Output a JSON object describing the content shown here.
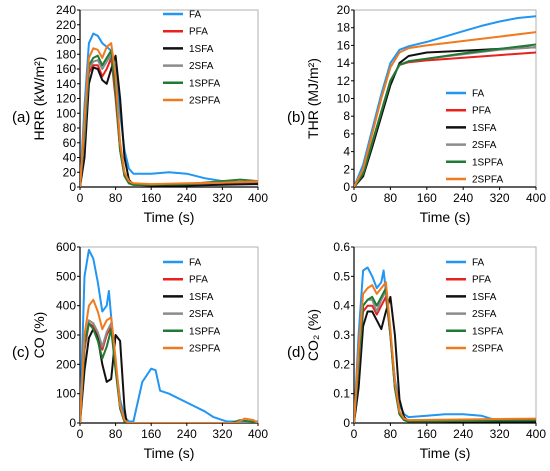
{
  "series_colors": {
    "FA": "#2196F3",
    "PFA": "#E8211D",
    "1SFA": "#111111",
    "2SFA": "#8C8C8C",
    "1SPFA": "#1E7A34",
    "2SPFA": "#F07A1E"
  },
  "chart_data": [
    {
      "panel": "(a)",
      "type": "line",
      "title": "",
      "xlabel": "Time (s)",
      "ylabel": "HRR (kW/m²)",
      "xlim": [
        0,
        400
      ],
      "ylim": [
        0,
        240
      ],
      "xticks": [
        "0",
        "80",
        "160",
        "240",
        "320",
        "400"
      ],
      "yticks": [
        "0",
        "20",
        "40",
        "60",
        "80",
        "100",
        "120",
        "140",
        "160",
        "180",
        "200",
        "220",
        "240"
      ],
      "legend": [
        "FA",
        "PFA",
        "1SFA",
        "2SFA",
        "1SPFA",
        "2SPFA"
      ],
      "legend_position": "top-right",
      "series": [
        {
          "name": "FA",
          "x": [
            0,
            10,
            20,
            30,
            40,
            50,
            60,
            70,
            80,
            90,
            100,
            110,
            120,
            160,
            200,
            240,
            280,
            320,
            360,
            400
          ],
          "y": [
            0,
            110,
            195,
            208,
            205,
            195,
            190,
            185,
            160,
            100,
            50,
            25,
            18,
            18,
            20,
            18,
            12,
            8,
            6,
            6
          ]
        },
        {
          "name": "PFA",
          "x": [
            0,
            10,
            20,
            30,
            40,
            50,
            60,
            70,
            80,
            90,
            100,
            110,
            120,
            160,
            240,
            320,
            400
          ],
          "y": [
            0,
            80,
            155,
            165,
            165,
            150,
            160,
            175,
            120,
            50,
            15,
            5,
            3,
            3,
            3,
            5,
            6
          ]
        },
        {
          "name": "1SFA",
          "x": [
            0,
            10,
            20,
            30,
            40,
            50,
            60,
            70,
            80,
            90,
            100,
            110,
            120,
            160,
            240,
            320,
            400
          ],
          "y": [
            0,
            40,
            140,
            162,
            160,
            145,
            140,
            160,
            178,
            120,
            40,
            10,
            3,
            2,
            2,
            3,
            4
          ]
        },
        {
          "name": "2SFA",
          "x": [
            0,
            10,
            20,
            30,
            40,
            50,
            60,
            70,
            80,
            90,
            100,
            110,
            120,
            160,
            240,
            320,
            400
          ],
          "y": [
            0,
            70,
            160,
            170,
            172,
            160,
            170,
            180,
            130,
            50,
            15,
            5,
            3,
            3,
            4,
            6,
            7
          ]
        },
        {
          "name": "1SPFA",
          "x": [
            0,
            10,
            20,
            30,
            40,
            50,
            60,
            70,
            80,
            90,
            100,
            110,
            120,
            160,
            240,
            320,
            360,
            400
          ],
          "y": [
            0,
            80,
            165,
            175,
            178,
            165,
            175,
            185,
            130,
            50,
            15,
            5,
            3,
            3,
            4,
            8,
            10,
            8
          ]
        },
        {
          "name": "2SPFA",
          "x": [
            0,
            10,
            20,
            30,
            40,
            50,
            60,
            70,
            80,
            90,
            100,
            110,
            120,
            160,
            240,
            320,
            400
          ],
          "y": [
            0,
            90,
            175,
            188,
            186,
            175,
            190,
            195,
            150,
            60,
            20,
            8,
            5,
            4,
            5,
            6,
            8
          ]
        }
      ]
    },
    {
      "panel": "(b)",
      "type": "line",
      "title": "",
      "xlabel": "Time (s)",
      "ylabel": "THR (MJ/m²)",
      "xlim": [
        0,
        400
      ],
      "ylim": [
        0,
        20
      ],
      "xticks": [
        "0",
        "80",
        "160",
        "240",
        "320",
        "400"
      ],
      "yticks": [
        "0",
        "2",
        "4",
        "6",
        "8",
        "10",
        "12",
        "14",
        "16",
        "18",
        "20"
      ],
      "legend": [
        "FA",
        "PFA",
        "1SFA",
        "2SFA",
        "1SPFA",
        "2SPFA"
      ],
      "legend_position": "right",
      "series": [
        {
          "name": "FA",
          "x": [
            0,
            20,
            40,
            60,
            80,
            100,
            120,
            160,
            200,
            240,
            280,
            320,
            360,
            400
          ],
          "y": [
            0,
            2.5,
            6.5,
            10.5,
            14,
            15.5,
            15.9,
            16.4,
            17,
            17.6,
            18.2,
            18.7,
            19.1,
            19.3
          ]
        },
        {
          "name": "PFA",
          "x": [
            0,
            20,
            40,
            60,
            80,
            100,
            120,
            160,
            240,
            320,
            400
          ],
          "y": [
            0,
            1.5,
            5,
            8.5,
            12,
            13.8,
            14.1,
            14.3,
            14.6,
            14.9,
            15.2
          ]
        },
        {
          "name": "1SFA",
          "x": [
            0,
            20,
            40,
            60,
            80,
            100,
            120,
            160,
            240,
            320,
            400
          ],
          "y": [
            0,
            1.2,
            4.5,
            8,
            11.5,
            14,
            14.8,
            15.2,
            15.4,
            15.6,
            15.8
          ]
        },
        {
          "name": "2SFA",
          "x": [
            0,
            20,
            40,
            60,
            80,
            100,
            120,
            160,
            240,
            320,
            400
          ],
          "y": [
            0,
            1.5,
            5,
            8.5,
            12,
            13.8,
            14.2,
            14.5,
            15,
            15.5,
            15.8
          ]
        },
        {
          "name": "1SPFA",
          "x": [
            0,
            20,
            40,
            60,
            80,
            100,
            120,
            160,
            240,
            320,
            400
          ],
          "y": [
            0,
            1.5,
            5,
            8.5,
            12,
            13.8,
            14.2,
            14.5,
            15.1,
            15.6,
            16.1
          ]
        },
        {
          "name": "2SPFA",
          "x": [
            0,
            20,
            40,
            60,
            80,
            100,
            120,
            160,
            240,
            320,
            400
          ],
          "y": [
            0,
            2,
            6,
            10,
            13.5,
            15.2,
            15.7,
            16,
            16.5,
            17,
            17.5
          ]
        }
      ]
    },
    {
      "panel": "(c)",
      "type": "line",
      "title": "",
      "xlabel": "Time (s)",
      "ylabel": "CO (%)",
      "xlim": [
        0,
        400
      ],
      "ylim": [
        0,
        600
      ],
      "xticks": [
        "0",
        "80",
        "160",
        "240",
        "320",
        "400"
      ],
      "yticks": [
        "0",
        "100",
        "200",
        "300",
        "400",
        "500",
        "600"
      ],
      "legend": [
        "FA",
        "PFA",
        "1SFA",
        "2SFA",
        "1SPFA",
        "2SPFA"
      ],
      "legend_position": "right",
      "series": [
        {
          "name": "FA",
          "x": [
            0,
            10,
            20,
            30,
            40,
            50,
            60,
            65,
            70,
            80,
            90,
            100,
            110,
            120,
            140,
            160,
            170,
            180,
            200,
            240,
            280,
            300,
            320,
            330,
            400
          ],
          "y": [
            0,
            500,
            590,
            560,
            480,
            380,
            400,
            450,
            360,
            200,
            80,
            20,
            5,
            5,
            140,
            185,
            180,
            110,
            100,
            70,
            40,
            20,
            10,
            5,
            5
          ]
        },
        {
          "name": "PFA",
          "x": [
            0,
            10,
            20,
            30,
            40,
            50,
            60,
            70,
            80,
            90,
            100,
            110,
            400
          ],
          "y": [
            0,
            250,
            340,
            330,
            300,
            250,
            300,
            330,
            200,
            50,
            5,
            0,
            0
          ]
        },
        {
          "name": "1SFA",
          "x": [
            0,
            10,
            20,
            30,
            40,
            50,
            60,
            70,
            80,
            90,
            100,
            105,
            400
          ],
          "y": [
            0,
            180,
            290,
            320,
            290,
            200,
            140,
            150,
            300,
            280,
            50,
            0,
            0
          ]
        },
        {
          "name": "2SFA",
          "x": [
            0,
            10,
            20,
            30,
            40,
            50,
            60,
            70,
            80,
            90,
            100,
            110,
            400
          ],
          "y": [
            0,
            260,
            350,
            340,
            310,
            260,
            310,
            340,
            200,
            50,
            5,
            0,
            0
          ]
        },
        {
          "name": "1SPFA",
          "x": [
            0,
            10,
            20,
            30,
            40,
            50,
            60,
            70,
            80,
            90,
            100,
            110,
            340,
            360,
            380,
            400
          ],
          "y": [
            0,
            270,
            340,
            320,
            280,
            220,
            260,
            320,
            180,
            50,
            5,
            0,
            0,
            10,
            5,
            0
          ]
        },
        {
          "name": "2SPFA",
          "x": [
            0,
            10,
            20,
            30,
            40,
            50,
            60,
            70,
            80,
            90,
            100,
            110,
            350,
            370,
            390,
            400
          ],
          "y": [
            0,
            300,
            400,
            420,
            380,
            320,
            350,
            360,
            220,
            60,
            10,
            0,
            0,
            15,
            10,
            0
          ]
        }
      ]
    },
    {
      "panel": "(d)",
      "type": "line",
      "title": "",
      "xlabel": "Time (s)",
      "ylabel": "CO₂ (%)",
      "xlim": [
        0,
        400
      ],
      "ylim": [
        0,
        0.6
      ],
      "xticks": [
        "0",
        "80",
        "160",
        "240",
        "320",
        "400"
      ],
      "yticks": [
        "0",
        "0.1",
        "0.2",
        "0.3",
        "0.4",
        "0.5",
        "0.6"
      ],
      "legend": [
        "FA",
        "PFA",
        "1SFA",
        "2SFA",
        "1SPFA",
        "2SPFA"
      ],
      "legend_position": "right",
      "series": [
        {
          "name": "FA",
          "x": [
            0,
            10,
            20,
            30,
            40,
            50,
            60,
            65,
            70,
            80,
            90,
            100,
            110,
            120,
            160,
            200,
            240,
            280,
            300,
            320,
            360,
            400
          ],
          "y": [
            0,
            0.3,
            0.52,
            0.53,
            0.5,
            0.46,
            0.48,
            0.52,
            0.45,
            0.3,
            0.15,
            0.06,
            0.03,
            0.02,
            0.025,
            0.03,
            0.03,
            0.025,
            0.015,
            0.01,
            0.01,
            0.01
          ]
        },
        {
          "name": "PFA",
          "x": [
            0,
            10,
            20,
            30,
            40,
            50,
            60,
            70,
            80,
            90,
            100,
            110,
            120,
            400
          ],
          "y": [
            0,
            0.2,
            0.38,
            0.4,
            0.4,
            0.37,
            0.4,
            0.43,
            0.3,
            0.12,
            0.03,
            0.01,
            0.005,
            0.005
          ]
        },
        {
          "name": "1SFA",
          "x": [
            0,
            10,
            20,
            30,
            40,
            50,
            60,
            70,
            80,
            90,
            100,
            110,
            120,
            400
          ],
          "y": [
            0,
            0.12,
            0.33,
            0.38,
            0.38,
            0.35,
            0.32,
            0.38,
            0.43,
            0.3,
            0.08,
            0.02,
            0.005,
            0.005
          ]
        },
        {
          "name": "2SFA",
          "x": [
            0,
            10,
            20,
            30,
            40,
            50,
            60,
            70,
            80,
            90,
            100,
            110,
            120,
            400
          ],
          "y": [
            0,
            0.2,
            0.4,
            0.42,
            0.42,
            0.38,
            0.42,
            0.45,
            0.3,
            0.12,
            0.03,
            0.01,
            0.005,
            0.01
          ]
        },
        {
          "name": "1SPFA",
          "x": [
            0,
            10,
            20,
            30,
            40,
            50,
            60,
            70,
            80,
            90,
            100,
            110,
            120,
            400
          ],
          "y": [
            0,
            0.22,
            0.4,
            0.42,
            0.43,
            0.4,
            0.43,
            0.46,
            0.3,
            0.12,
            0.03,
            0.01,
            0.005,
            0.01
          ]
        },
        {
          "name": "2SPFA",
          "x": [
            0,
            10,
            20,
            30,
            40,
            50,
            60,
            70,
            80,
            90,
            100,
            110,
            120,
            400
          ],
          "y": [
            0,
            0.25,
            0.44,
            0.46,
            0.47,
            0.44,
            0.46,
            0.48,
            0.32,
            0.14,
            0.04,
            0.015,
            0.01,
            0.015
          ]
        }
      ]
    }
  ]
}
